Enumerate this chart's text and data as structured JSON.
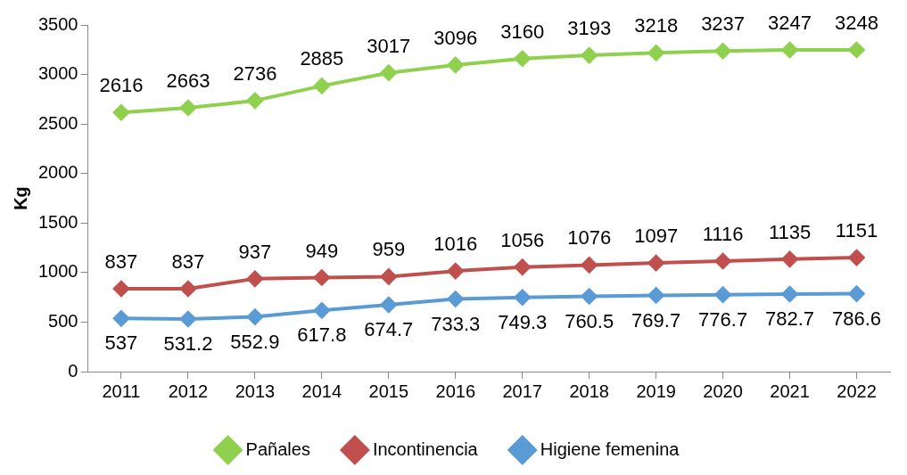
{
  "chart_data": {
    "type": "line",
    "ylabel": "Kg",
    "categories": [
      "2011",
      "2012",
      "2013",
      "2014",
      "2015",
      "2016",
      "2017",
      "2018",
      "2019",
      "2020",
      "2021",
      "2022"
    ],
    "series": [
      {
        "name": "Pañales",
        "color": "#8fd14f",
        "values": [
          2616,
          2663,
          2736,
          2885,
          3017,
          3096,
          3160,
          3193,
          3218,
          3237,
          3247,
          3248
        ]
      },
      {
        "name": "Incontinencia",
        "color": "#c0504d",
        "values": [
          837,
          837,
          937,
          949,
          959,
          1016,
          1056,
          1076,
          1097,
          1116,
          1135,
          1151
        ]
      },
      {
        "name": "Higiene femenina",
        "color": "#5b9bd5",
        "values": [
          537,
          531.2,
          552.9,
          617.8,
          674.7,
          733.3,
          749.3,
          760.5,
          769.7,
          776.7,
          782.7,
          786.6
        ]
      }
    ],
    "ylim": [
      0,
      3500
    ],
    "yticks": [
      0,
      500,
      1000,
      1500,
      2000,
      2500,
      3000,
      3500
    ],
    "grid": false,
    "legend": "bottom",
    "marker": "diamond",
    "line_style": "solid",
    "data_labels": true
  }
}
